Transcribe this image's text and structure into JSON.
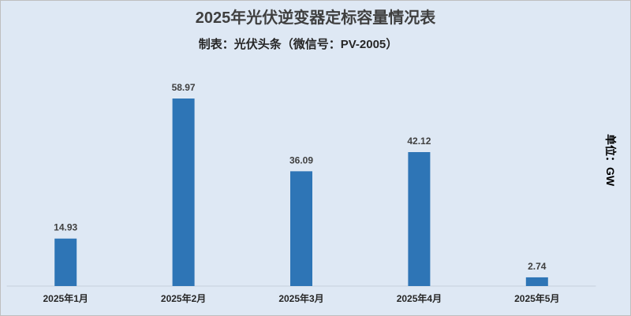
{
  "chart_data": {
    "type": "bar",
    "title": "2025年光伏逆变器定标容量情况表",
    "subtitle": "制表：光伏头条（微信号：PV-2005）",
    "ylabel": "单位：GW",
    "xlabel": "",
    "categories": [
      "2025年1月",
      "2025年2月",
      "2025年3月",
      "2025年4月",
      "2025年5月"
    ],
    "values": [
      14.93,
      58.97,
      36.09,
      42.12,
      2.74
    ],
    "ylim": [
      0,
      70
    ],
    "grid": false,
    "colors": {
      "bar": "#2e75b6",
      "background": "#dee8f4",
      "text": "#404040"
    }
  }
}
